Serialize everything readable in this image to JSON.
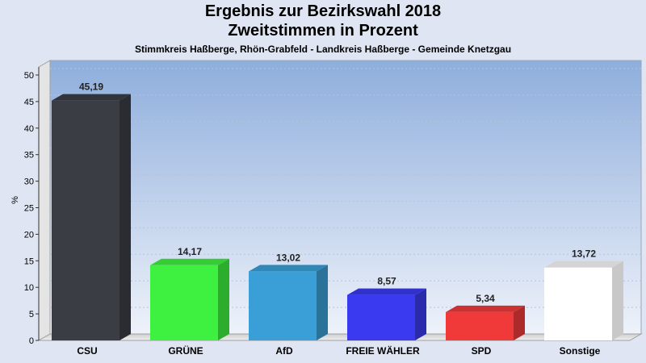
{
  "chart_data": {
    "type": "bar",
    "title": "Ergebnis zur Bezirkswahl 2018",
    "subtitle": "Zweitstimmen in Prozent",
    "caption": "Stimmkreis Haßberge, Rhön-Grabfeld - Landkreis Haßberge - Gemeinde Knetzgau",
    "ylabel": "%",
    "xlabel": "",
    "ylim": [
      0,
      50
    ],
    "yticks": [
      0,
      5,
      10,
      15,
      20,
      25,
      30,
      35,
      40,
      45,
      50
    ],
    "categories": [
      "CSU",
      "GRÜNE",
      "AfD",
      "FREIE WÄHLER",
      "SPD",
      "Sonstige"
    ],
    "values": [
      45.19,
      14.17,
      13.02,
      8.57,
      5.34,
      13.72
    ],
    "value_labels": [
      "45,19",
      "14,17",
      "13,02",
      "8,57",
      "5,34",
      "13,72"
    ],
    "colors": [
      "#3a3d44",
      "#3ef040",
      "#3a9fd6",
      "#3a3af0",
      "#f03a3a",
      "#ffffff"
    ],
    "grid": true,
    "legend": "none"
  }
}
